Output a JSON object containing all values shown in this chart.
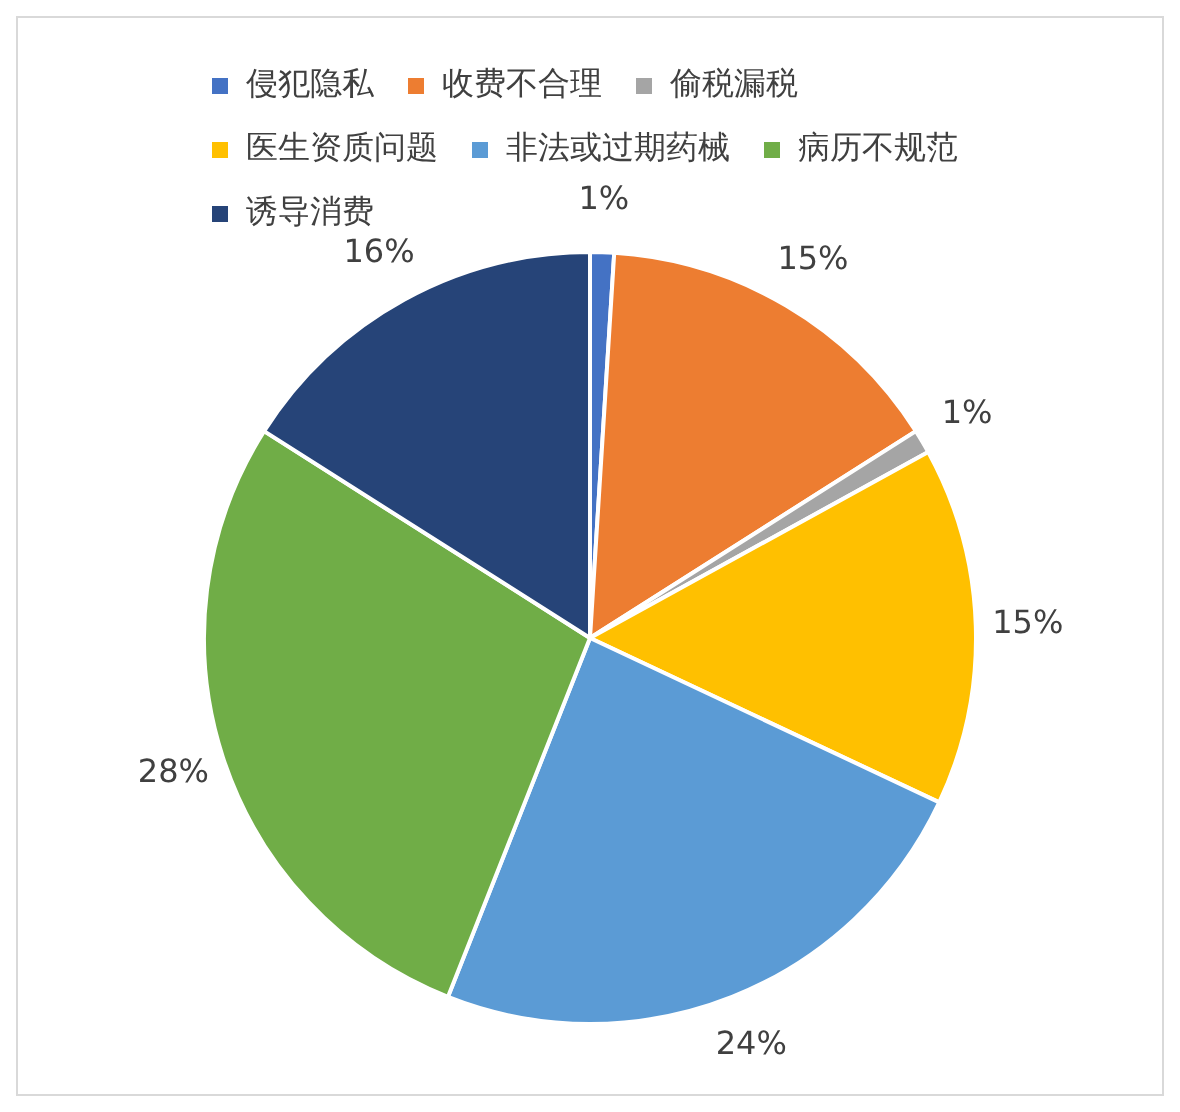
{
  "chart_data": {
    "type": "pie",
    "categories": [
      "侵犯隐私",
      "收费不合理",
      "偷税漏税",
      "医生资质问题",
      "非法或过期药械",
      "病历不规范",
      "诱导消费"
    ],
    "values": [
      1,
      15,
      1,
      15,
      24,
      28,
      16
    ],
    "colors": [
      "#4472c4",
      "#ed7d31",
      "#a5a5a5",
      "#ffc000",
      "#5b9bd5",
      "#70ad47",
      "#264478"
    ],
    "value_labels": [
      "1%",
      "15%",
      "1%",
      "15%",
      "24%",
      "28%",
      "16%"
    ],
    "legend": "top left"
  }
}
